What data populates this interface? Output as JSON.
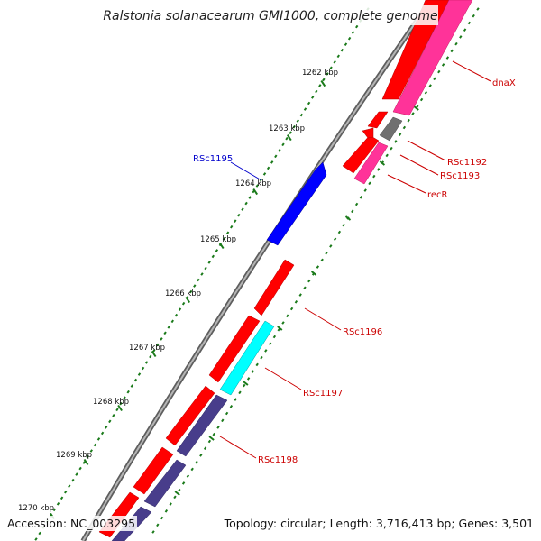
{
  "title": "Ralstonia solanacearum GMI1000, complete genome",
  "footer": {
    "accession": "Accession: NC_003295",
    "topology": "Topology: circular; Length: 3,716,413 bp; Genes: 3,501"
  },
  "ruler": [
    {
      "label": "1262 kbp",
      "pos": 1262
    },
    {
      "label": "1263 kbp",
      "pos": 1263
    },
    {
      "label": "1264 kbp",
      "pos": 1264
    },
    {
      "label": "1265 kbp",
      "pos": 1265
    },
    {
      "label": "1266 kbp",
      "pos": 1266
    },
    {
      "label": "1267 kbp",
      "pos": 1267
    },
    {
      "label": "1268 kbp",
      "pos": 1268
    },
    {
      "label": "1269 kbp",
      "pos": 1269
    },
    {
      "label": "1270 kbp",
      "pos": 1270
    }
  ],
  "colors": {
    "backbone": "#8c8c8c",
    "cds": "#ff0000",
    "gene": "#ff3399",
    "rna": "#707070",
    "blue_feature": "#0000ff",
    "cyan_feature": "#00ffff",
    "purple_feature": "#483d8b",
    "tick_green": "#1a7a1a",
    "label_red": "#cc0000",
    "label_blue": "#0000cc"
  },
  "genes": [
    {
      "label": "dnaX",
      "color": "label_red"
    },
    {
      "label": "RSc1192",
      "color": "label_red"
    },
    {
      "label": "RSc1193",
      "color": "label_red"
    },
    {
      "label": "recR",
      "color": "label_red"
    },
    {
      "label": "RSc1195",
      "color": "label_blue"
    },
    {
      "label": "RSc1196",
      "color": "label_red"
    },
    {
      "label": "RSc1197",
      "color": "label_red"
    },
    {
      "label": "RSc1198",
      "color": "label_red"
    }
  ]
}
